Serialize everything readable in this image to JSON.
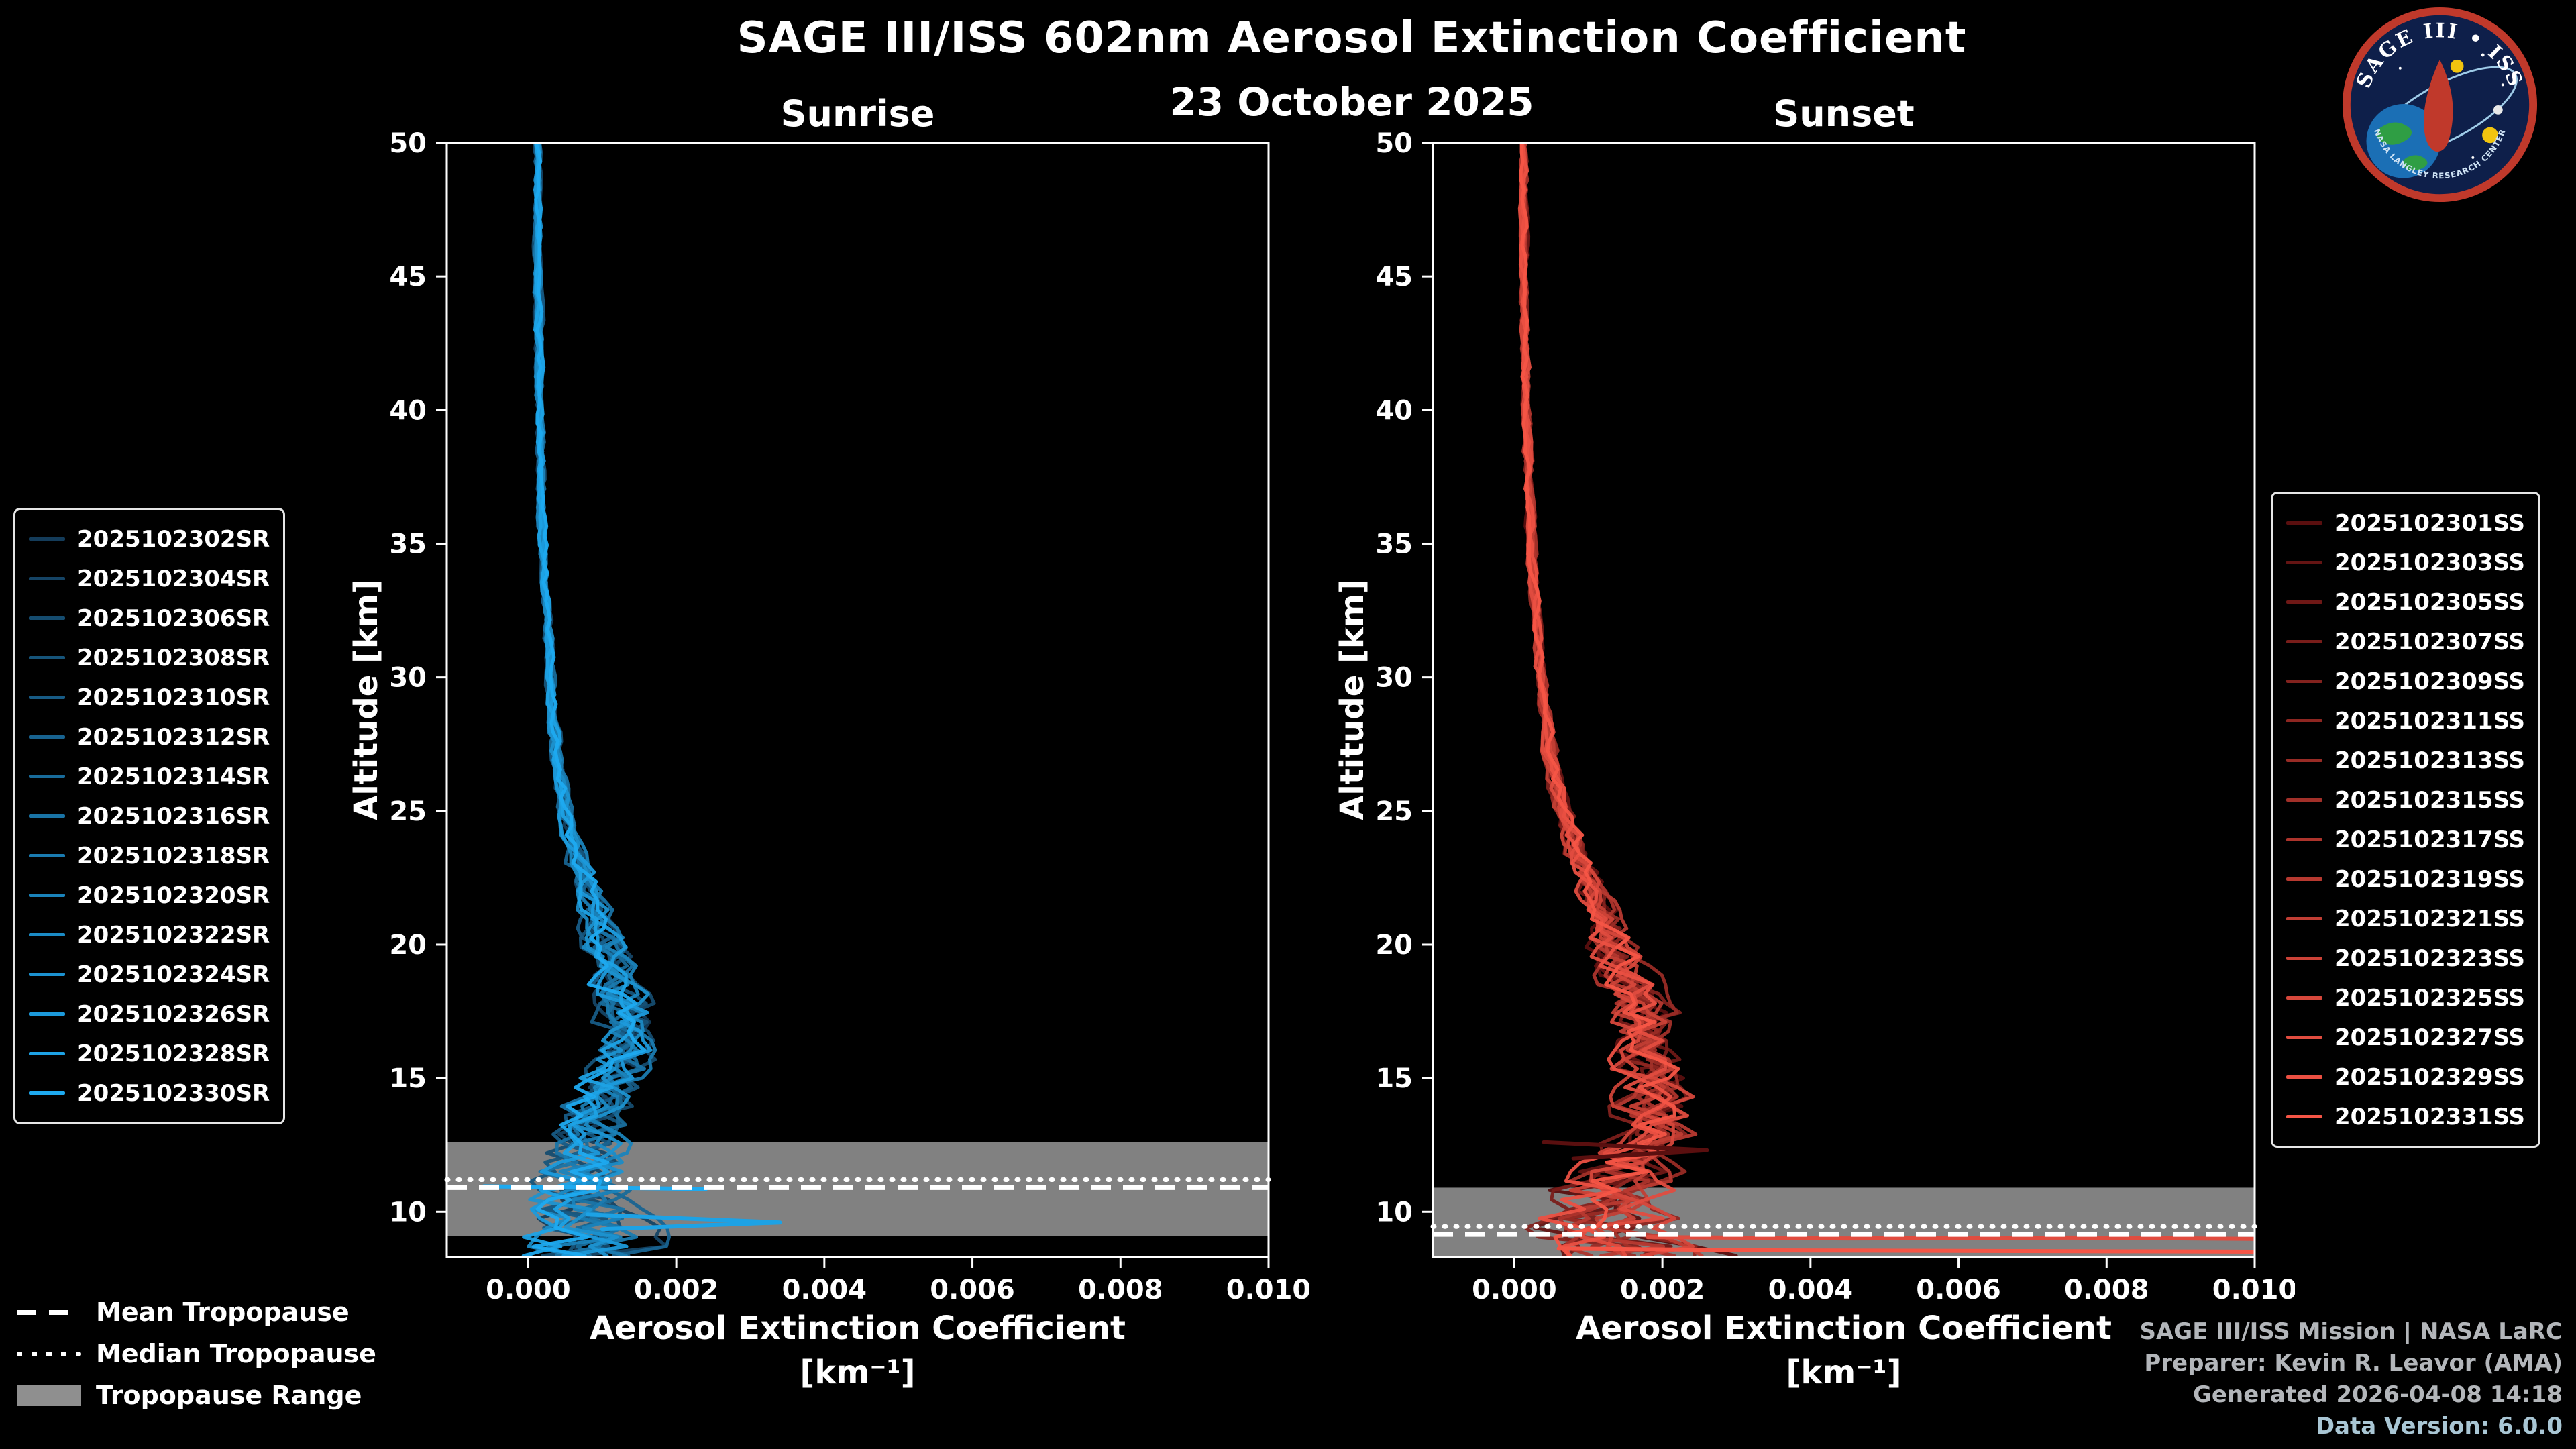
{
  "header": {
    "title": "SAGE III/ISS 602nm Aerosol Extinction Coefficient",
    "date": "23 October 2025"
  },
  "logo": {
    "title": "SAGE III • ISS",
    "subtitle": "NASA LANGLEY RESEARCH CENTER"
  },
  "axes": {
    "x_label_line1": "Aerosol Extinction Coefficient",
    "x_label_line2": "[km⁻¹]",
    "y_label": "Altitude [km]",
    "x_min": -0.0011,
    "x_max": 0.01,
    "y_min": 8.3,
    "y_max": 50,
    "x_ticks": [
      0,
      0.002,
      0.004,
      0.006,
      0.008,
      0.01
    ],
    "x_tick_labels": [
      "0.000",
      "0.002",
      "0.004",
      "0.006",
      "0.008",
      "0.010"
    ],
    "y_ticks": [
      10,
      15,
      20,
      25,
      30,
      35,
      40,
      45,
      50
    ]
  },
  "tropopause_legend": [
    {
      "label": "Mean Tropopause",
      "style": "dashed"
    },
    {
      "label": "Median Tropopause",
      "style": "dotted"
    },
    {
      "label": "Tropopause Range",
      "style": "band"
    }
  ],
  "footer": {
    "lines": [
      "SAGE III/ISS Mission | NASA LaRC",
      "Preparer: Kevin R. Leavor (AMA)",
      "Generated 2026-04-08 14:18",
      "Data Version: 6.0.0"
    ]
  },
  "chart_data": [
    {
      "type": "line",
      "title": "Sunrise",
      "event_type": "SR",
      "tropopause": {
        "mean_km": 10.9,
        "median_km": 11.2,
        "range_km": [
          9.1,
          12.6
        ]
      },
      "series": [
        {
          "label": "2025102302SR",
          "color": "#143C5A",
          "seed": 101
        },
        {
          "label": "2025102304SR",
          "color": "#154465",
          "seed": 102
        },
        {
          "label": "2025102306SR",
          "color": "#154C6F",
          "seed": 103
        },
        {
          "label": "2025102308SR",
          "color": "#16547A",
          "seed": 104
        },
        {
          "label": "2025102310SR",
          "color": "#175B85",
          "seed": 105
        },
        {
          "label": "2025102312SR",
          "color": "#186390",
          "seed": 106
        },
        {
          "label": "2025102314SR",
          "color": "#186B9A",
          "seed": 107
        },
        {
          "label": "2025102316SR",
          "color": "#1973A5",
          "seed": 108
        },
        {
          "label": "2025102318SR",
          "color": "#1A7BB0",
          "seed": 109
        },
        {
          "label": "2025102320SR",
          "color": "#1A83BA",
          "seed": 110
        },
        {
          "label": "2025102322SR",
          "color": "#1B8BC5",
          "seed": 111
        },
        {
          "label": "2025102324SR",
          "color": "#1C92D0",
          "seed": 112
        },
        {
          "label": "2025102326SR",
          "color": "#1C9ADB",
          "seed": 113
        },
        {
          "label": "2025102328SR",
          "color": "#1DA2E5",
          "seed": 114
        },
        {
          "label": "2025102330SR",
          "color": "#1EAAF0",
          "seed": 115
        }
      ],
      "base_profile": {
        "alt": [
          50,
          45,
          40,
          35,
          30,
          27,
          25,
          23,
          21,
          20,
          19,
          18,
          17,
          16,
          15,
          14,
          13,
          12,
          11,
          10,
          9.5,
          9,
          8.5,
          8.3
        ],
        "val": [
          0.00012,
          0.00013,
          0.00015,
          0.0002,
          0.0003,
          0.0004,
          0.0005,
          0.0007,
          0.00095,
          0.00105,
          0.00115,
          0.00125,
          0.00135,
          0.00135,
          0.00115,
          0.00095,
          0.0008,
          0.0007,
          0.00065,
          0.0007,
          0.00075,
          0.0007,
          0.0006,
          0.0006
        ]
      },
      "noise_amp": {
        "alt": [
          50,
          30,
          25,
          22,
          20,
          18,
          16,
          14,
          12,
          10,
          8.3
        ],
        "amp": [
          4e-05,
          5e-05,
          9e-05,
          0.00015,
          0.00025,
          0.0003,
          0.00035,
          0.0004,
          0.0005,
          0.0007,
          0.00075
        ]
      },
      "extra_segments": [
        {
          "color": "#1DA2E5",
          "points": [
            [
              0.0008,
              9.9
            ],
            [
              0.0034,
              9.6
            ],
            [
              0.001,
              9.35
            ]
          ]
        },
        {
          "color": "#1EAAF0",
          "points": [
            [
              -0.0006,
              10.95
            ],
            [
              0.0024,
              10.85
            ]
          ]
        }
      ]
    },
    {
      "type": "line",
      "title": "Sunset",
      "event_type": "SS",
      "tropopause": {
        "mean_km": 9.15,
        "median_km": 9.45,
        "range_km": [
          8.3,
          10.9
        ]
      },
      "series": [
        {
          "label": "2025102301SS",
          "color": "#5A0F0F",
          "seed": 201
        },
        {
          "label": "2025102303SS",
          "color": "#641413",
          "seed": 202
        },
        {
          "label": "2025102305SS",
          "color": "#6F1816",
          "seed": 203
        },
        {
          "label": "2025102307SS",
          "color": "#791D1A",
          "seed": 204
        },
        {
          "label": "2025102309SS",
          "color": "#83221E",
          "seed": 205
        },
        {
          "label": "2025102311SS",
          "color": "#8E2621",
          "seed": 206
        },
        {
          "label": "2025102313SS",
          "color": "#982B25",
          "seed": 207
        },
        {
          "label": "2025102315SS",
          "color": "#A23029",
          "seed": 208
        },
        {
          "label": "2025102317SS",
          "color": "#AD342C",
          "seed": 209
        },
        {
          "label": "2025102319SS",
          "color": "#B73930",
          "seed": 210
        },
        {
          "label": "2025102321SS",
          "color": "#C13E34",
          "seed": 211
        },
        {
          "label": "2025102323SS",
          "color": "#CC4237",
          "seed": 212
        },
        {
          "label": "2025102325SS",
          "color": "#D6473B",
          "seed": 213
        },
        {
          "label": "2025102327SS",
          "color": "#E04C3F",
          "seed": 214
        },
        {
          "label": "2025102329SS",
          "color": "#EB5042",
          "seed": 215
        },
        {
          "label": "2025102331SS",
          "color": "#F55546",
          "seed": 216
        }
      ],
      "base_profile": {
        "alt": [
          50,
          45,
          40,
          35,
          30,
          27,
          25,
          23,
          21,
          20,
          19,
          18,
          17,
          16,
          15,
          14,
          13,
          12,
          11,
          10,
          9.5,
          9,
          8.5,
          8.3
        ],
        "val": [
          0.00012,
          0.00013,
          0.00016,
          0.00022,
          0.00035,
          0.0005,
          0.00065,
          0.0009,
          0.0012,
          0.00135,
          0.0015,
          0.00165,
          0.00175,
          0.0018,
          0.00185,
          0.00185,
          0.0018,
          0.0016,
          0.00135,
          0.0011,
          0.0012,
          0.0014,
          0.0016,
          0.0017
        ]
      },
      "noise_amp": {
        "alt": [
          50,
          30,
          25,
          22,
          20,
          18,
          16,
          14,
          12,
          10,
          8.3
        ],
        "amp": [
          4e-05,
          5e-05,
          0.0001,
          0.00018,
          0.00028,
          0.00035,
          0.0004,
          0.00045,
          0.00055,
          0.0008,
          0.0009
        ]
      },
      "extra_segments": [
        {
          "color": "#E04C3F",
          "points": [
            [
              0.0018,
              9.05
            ],
            [
              0.0045,
              9.0
            ],
            [
              0.0075,
              9.03
            ],
            [
              0.0102,
              8.98
            ]
          ]
        },
        {
          "color": "#F55546",
          "points": [
            [
              0.0006,
              8.62
            ],
            [
              0.0035,
              8.55
            ],
            [
              0.0102,
              8.5
            ]
          ]
        },
        {
          "color": "#5A0F0F",
          "points": [
            [
              0.0004,
              12.6
            ],
            [
              0.0026,
              12.3
            ],
            [
              0.0008,
              12.0
            ]
          ]
        }
      ]
    }
  ]
}
